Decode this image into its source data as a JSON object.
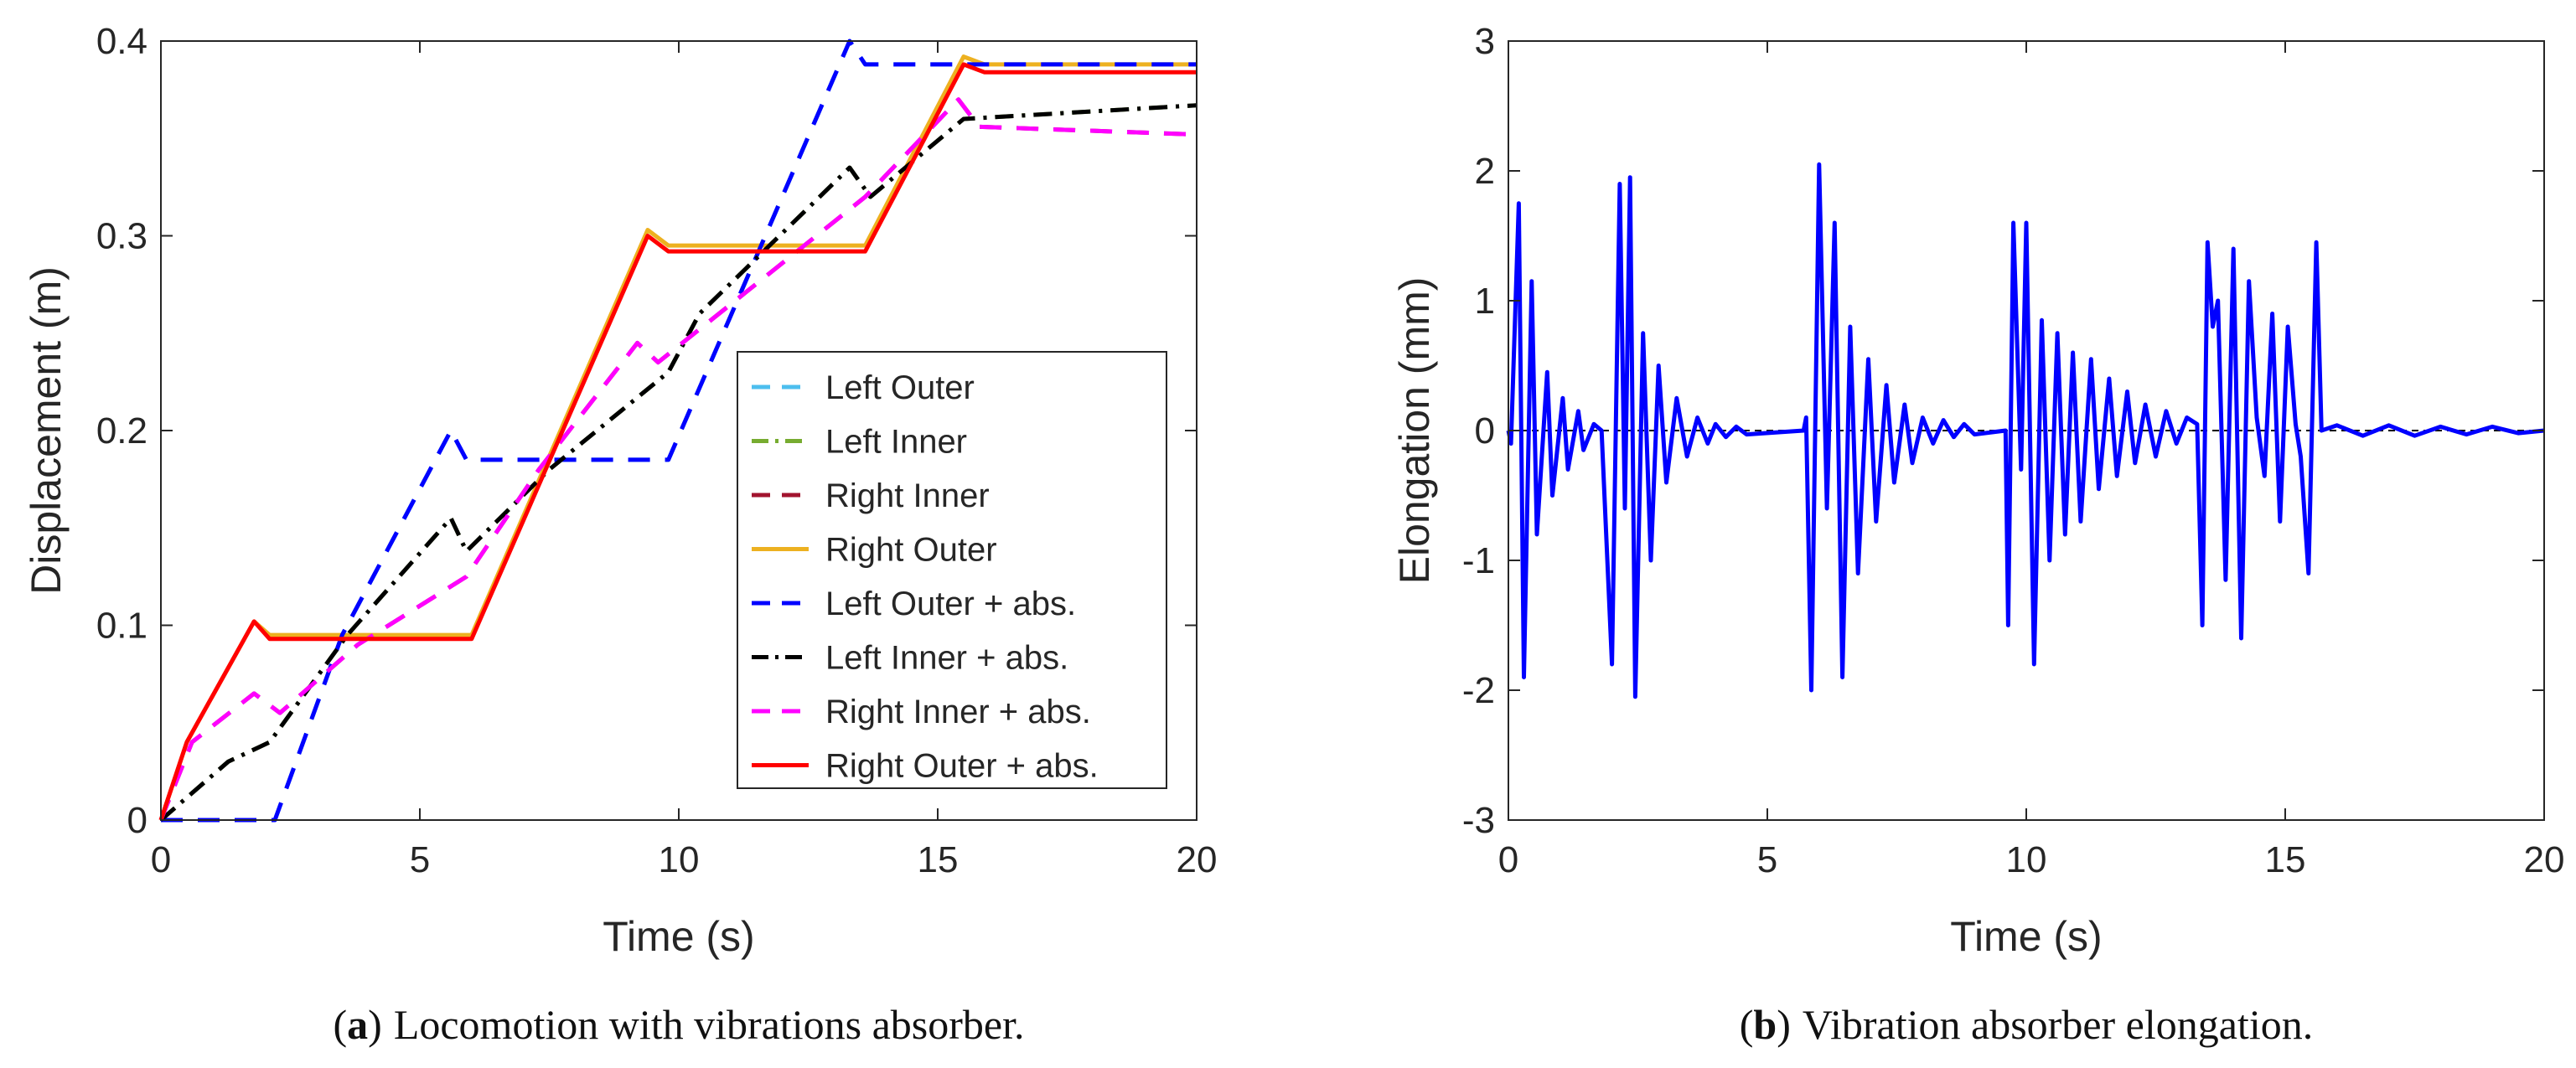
{
  "chart_data": [
    {
      "type": "line",
      "caption_letter": "a",
      "caption_text": "Locomotion with vibrations absorber.",
      "caption_open": "(",
      "caption_close": ")",
      "xlabel": "Time (s)",
      "ylabel": "Displacement (m)",
      "xlim": [
        0,
        20
      ],
      "ylim": [
        0,
        0.4
      ],
      "xticks": [
        0,
        5,
        10,
        15,
        20
      ],
      "xtick_labels": [
        "0",
        "5",
        "10",
        "15",
        "20"
      ],
      "yticks": [
        0,
        0.1,
        0.2,
        0.3,
        0.4
      ],
      "ytick_labels": [
        "0",
        "0.1",
        "0.2",
        "0.3",
        "0.4"
      ],
      "legend_position": "center-right",
      "series": [
        {
          "name": "Left Outer",
          "color": "#4DBEEE",
          "style": "dashed",
          "points": [
            [
              0,
              0
            ],
            [
              2.2,
              0
            ],
            [
              3.5,
              0.095
            ],
            [
              5.6,
              0.2
            ],
            [
              5.9,
              0.185
            ],
            [
              9.8,
              0.185
            ],
            [
              13.3,
              0.4
            ],
            [
              13.6,
              0.388
            ],
            [
              20,
              0.388
            ]
          ]
        },
        {
          "name": "Left Inner",
          "color": "#77AC30",
          "style": "dashdot",
          "points": [
            [
              0,
              0
            ],
            [
              1.3,
              0.03
            ],
            [
              2.1,
              0.04
            ],
            [
              3.6,
              0.095
            ],
            [
              5.6,
              0.155
            ],
            [
              5.9,
              0.138
            ],
            [
              7.5,
              0.18
            ],
            [
              9.8,
              0.23
            ],
            [
              10.4,
              0.26
            ],
            [
              13.3,
              0.335
            ],
            [
              13.7,
              0.32
            ],
            [
              15.5,
              0.36
            ],
            [
              20,
              0.367
            ]
          ]
        },
        {
          "name": "Right Inner",
          "color": "#A2142F",
          "style": "dashed",
          "points": [
            [
              0,
              0
            ],
            [
              0.6,
              0.04
            ],
            [
              1.8,
              0.065
            ],
            [
              2.3,
              0.055
            ],
            [
              3.8,
              0.09
            ],
            [
              5.9,
              0.125
            ],
            [
              7.3,
              0.18
            ],
            [
              9.2,
              0.245
            ],
            [
              9.6,
              0.235
            ],
            [
              13.6,
              0.32
            ],
            [
              15.4,
              0.37
            ],
            [
              15.8,
              0.356
            ],
            [
              20,
              0.352
            ]
          ]
        },
        {
          "name": "Right Outer",
          "color": "#EDB120",
          "style": "solid",
          "points": [
            [
              0,
              0
            ],
            [
              0.5,
              0.04
            ],
            [
              1.8,
              0.102
            ],
            [
              2.1,
              0.095
            ],
            [
              6,
              0.095
            ],
            [
              9.4,
              0.303
            ],
            [
              9.8,
              0.295
            ],
            [
              13.6,
              0.295
            ],
            [
              15.5,
              0.392
            ],
            [
              15.9,
              0.388
            ],
            [
              20,
              0.388
            ]
          ]
        },
        {
          "name": "Left Outer + abs.",
          "color": "#0000FF",
          "style": "dashed",
          "points": [
            [
              0,
              0
            ],
            [
              2.2,
              0
            ],
            [
              3.5,
              0.095
            ],
            [
              5.6,
              0.2
            ],
            [
              5.9,
              0.185
            ],
            [
              9.8,
              0.185
            ],
            [
              13.3,
              0.4
            ],
            [
              13.6,
              0.388
            ],
            [
              20,
              0.388
            ]
          ]
        },
        {
          "name": "Left Inner + abs.",
          "color": "#000000",
          "style": "dashdot",
          "points": [
            [
              0,
              0
            ],
            [
              1.3,
              0.03
            ],
            [
              2.1,
              0.04
            ],
            [
              3.6,
              0.095
            ],
            [
              5.6,
              0.155
            ],
            [
              5.9,
              0.138
            ],
            [
              7.5,
              0.18
            ],
            [
              9.8,
              0.23
            ],
            [
              10.4,
              0.26
            ],
            [
              13.3,
              0.335
            ],
            [
              13.7,
              0.32
            ],
            [
              15.5,
              0.36
            ],
            [
              20,
              0.367
            ]
          ]
        },
        {
          "name": "Right Inner + abs.",
          "color": "#FF00FF",
          "style": "dashed",
          "points": [
            [
              0,
              0
            ],
            [
              0.6,
              0.04
            ],
            [
              1.8,
              0.065
            ],
            [
              2.3,
              0.055
            ],
            [
              3.8,
              0.09
            ],
            [
              5.9,
              0.125
            ],
            [
              7.3,
              0.18
            ],
            [
              9.2,
              0.245
            ],
            [
              9.6,
              0.235
            ],
            [
              13.6,
              0.32
            ],
            [
              15.4,
              0.37
            ],
            [
              15.8,
              0.356
            ],
            [
              20,
              0.352
            ]
          ]
        },
        {
          "name": "Right Outer + abs.",
          "color": "#FF0000",
          "style": "solid",
          "points": [
            [
              0,
              0
            ],
            [
              0.5,
              0.04
            ],
            [
              1.8,
              0.102
            ],
            [
              2.1,
              0.093
            ],
            [
              6,
              0.093
            ],
            [
              9.4,
              0.3
            ],
            [
              9.8,
              0.292
            ],
            [
              13.6,
              0.292
            ],
            [
              15.5,
              0.388
            ],
            [
              15.9,
              0.384
            ],
            [
              20,
              0.384
            ]
          ]
        }
      ]
    },
    {
      "type": "line",
      "caption_letter": "b",
      "caption_text": "Vibration absorber elongation.",
      "caption_open": "(",
      "caption_close": ")",
      "xlabel": "Time (s)",
      "ylabel": "Elongation (mm)",
      "xlim": [
        0,
        20
      ],
      "ylim": [
        -3,
        3
      ],
      "xticks": [
        0,
        5,
        10,
        15,
        20
      ],
      "xtick_labels": [
        "0",
        "5",
        "10",
        "15",
        "20"
      ],
      "yticks": [
        -3,
        -2,
        -1,
        0,
        1,
        2,
        3
      ],
      "ytick_labels": [
        "-3",
        "-2",
        "-1",
        "0",
        "1",
        "2",
        "3"
      ],
      "zero_line": true,
      "series": [
        {
          "name": "Elongation",
          "color": "#0000FF",
          "style": "solid",
          "points": [
            [
              0,
              0
            ],
            [
              0.05,
              -0.1
            ],
            [
              0.2,
              1.75
            ],
            [
              0.3,
              -1.9
            ],
            [
              0.45,
              1.15
            ],
            [
              0.55,
              -0.8
            ],
            [
              0.75,
              0.45
            ],
            [
              0.85,
              -0.5
            ],
            [
              1.05,
              0.25
            ],
            [
              1.15,
              -0.3
            ],
            [
              1.35,
              0.15
            ],
            [
              1.45,
              -0.15
            ],
            [
              1.65,
              0.05
            ],
            [
              1.8,
              0
            ],
            [
              2.0,
              -1.8
            ],
            [
              2.15,
              1.9
            ],
            [
              2.25,
              -0.6
            ],
            [
              2.35,
              1.95
            ],
            [
              2.45,
              -2.05
            ],
            [
              2.6,
              0.75
            ],
            [
              2.75,
              -1.0
            ],
            [
              2.9,
              0.5
            ],
            [
              3.05,
              -0.4
            ],
            [
              3.25,
              0.25
            ],
            [
              3.45,
              -0.2
            ],
            [
              3.65,
              0.1
            ],
            [
              3.85,
              -0.1
            ],
            [
              4.0,
              0.05
            ],
            [
              4.2,
              -0.05
            ],
            [
              4.4,
              0.03
            ],
            [
              4.6,
              -0.03
            ],
            [
              5.7,
              0
            ],
            [
              5.75,
              0.1
            ],
            [
              5.85,
              -2.0
            ],
            [
              6.0,
              2.05
            ],
            [
              6.15,
              -0.6
            ],
            [
              6.3,
              1.6
            ],
            [
              6.45,
              -1.9
            ],
            [
              6.6,
              0.8
            ],
            [
              6.75,
              -1.1
            ],
            [
              6.95,
              0.55
            ],
            [
              7.1,
              -0.7
            ],
            [
              7.3,
              0.35
            ],
            [
              7.45,
              -0.4
            ],
            [
              7.65,
              0.2
            ],
            [
              7.8,
              -0.25
            ],
            [
              8.0,
              0.1
            ],
            [
              8.2,
              -0.1
            ],
            [
              8.4,
              0.08
            ],
            [
              8.6,
              -0.05
            ],
            [
              8.8,
              0.05
            ],
            [
              9.0,
              -0.03
            ],
            [
              9.6,
              0
            ],
            [
              9.65,
              -1.5
            ],
            [
              9.75,
              1.6
            ],
            [
              9.9,
              -0.3
            ],
            [
              10.0,
              1.6
            ],
            [
              10.15,
              -1.8
            ],
            [
              10.3,
              0.85
            ],
            [
              10.45,
              -1.0
            ],
            [
              10.6,
              0.75
            ],
            [
              10.75,
              -0.8
            ],
            [
              10.9,
              0.6
            ],
            [
              11.05,
              -0.7
            ],
            [
              11.25,
              0.55
            ],
            [
              11.4,
              -0.45
            ],
            [
              11.6,
              0.4
            ],
            [
              11.75,
              -0.35
            ],
            [
              11.95,
              0.3
            ],
            [
              12.1,
              -0.25
            ],
            [
              12.3,
              0.2
            ],
            [
              12.5,
              -0.2
            ],
            [
              12.7,
              0.15
            ],
            [
              12.9,
              -0.1
            ],
            [
              13.1,
              0.1
            ],
            [
              13.3,
              0.05
            ],
            [
              13.4,
              -1.5
            ],
            [
              13.5,
              1.45
            ],
            [
              13.6,
              0.8
            ],
            [
              13.7,
              1.0
            ],
            [
              13.85,
              -1.15
            ],
            [
              14.0,
              1.4
            ],
            [
              14.15,
              -1.6
            ],
            [
              14.3,
              1.15
            ],
            [
              14.45,
              0.1
            ],
            [
              14.6,
              -0.35
            ],
            [
              14.75,
              0.9
            ],
            [
              14.9,
              -0.7
            ],
            [
              15.05,
              0.8
            ],
            [
              15.2,
              0.05
            ],
            [
              15.3,
              -0.2
            ],
            [
              15.45,
              -1.1
            ],
            [
              15.6,
              1.45
            ],
            [
              15.7,
              0
            ],
            [
              16,
              0.04
            ],
            [
              16.5,
              -0.04
            ],
            [
              17,
              0.04
            ],
            [
              17.5,
              -0.04
            ],
            [
              18,
              0.03
            ],
            [
              18.5,
              -0.03
            ],
            [
              19,
              0.03
            ],
            [
              19.5,
              -0.02
            ],
            [
              20,
              0
            ]
          ]
        }
      ]
    }
  ]
}
